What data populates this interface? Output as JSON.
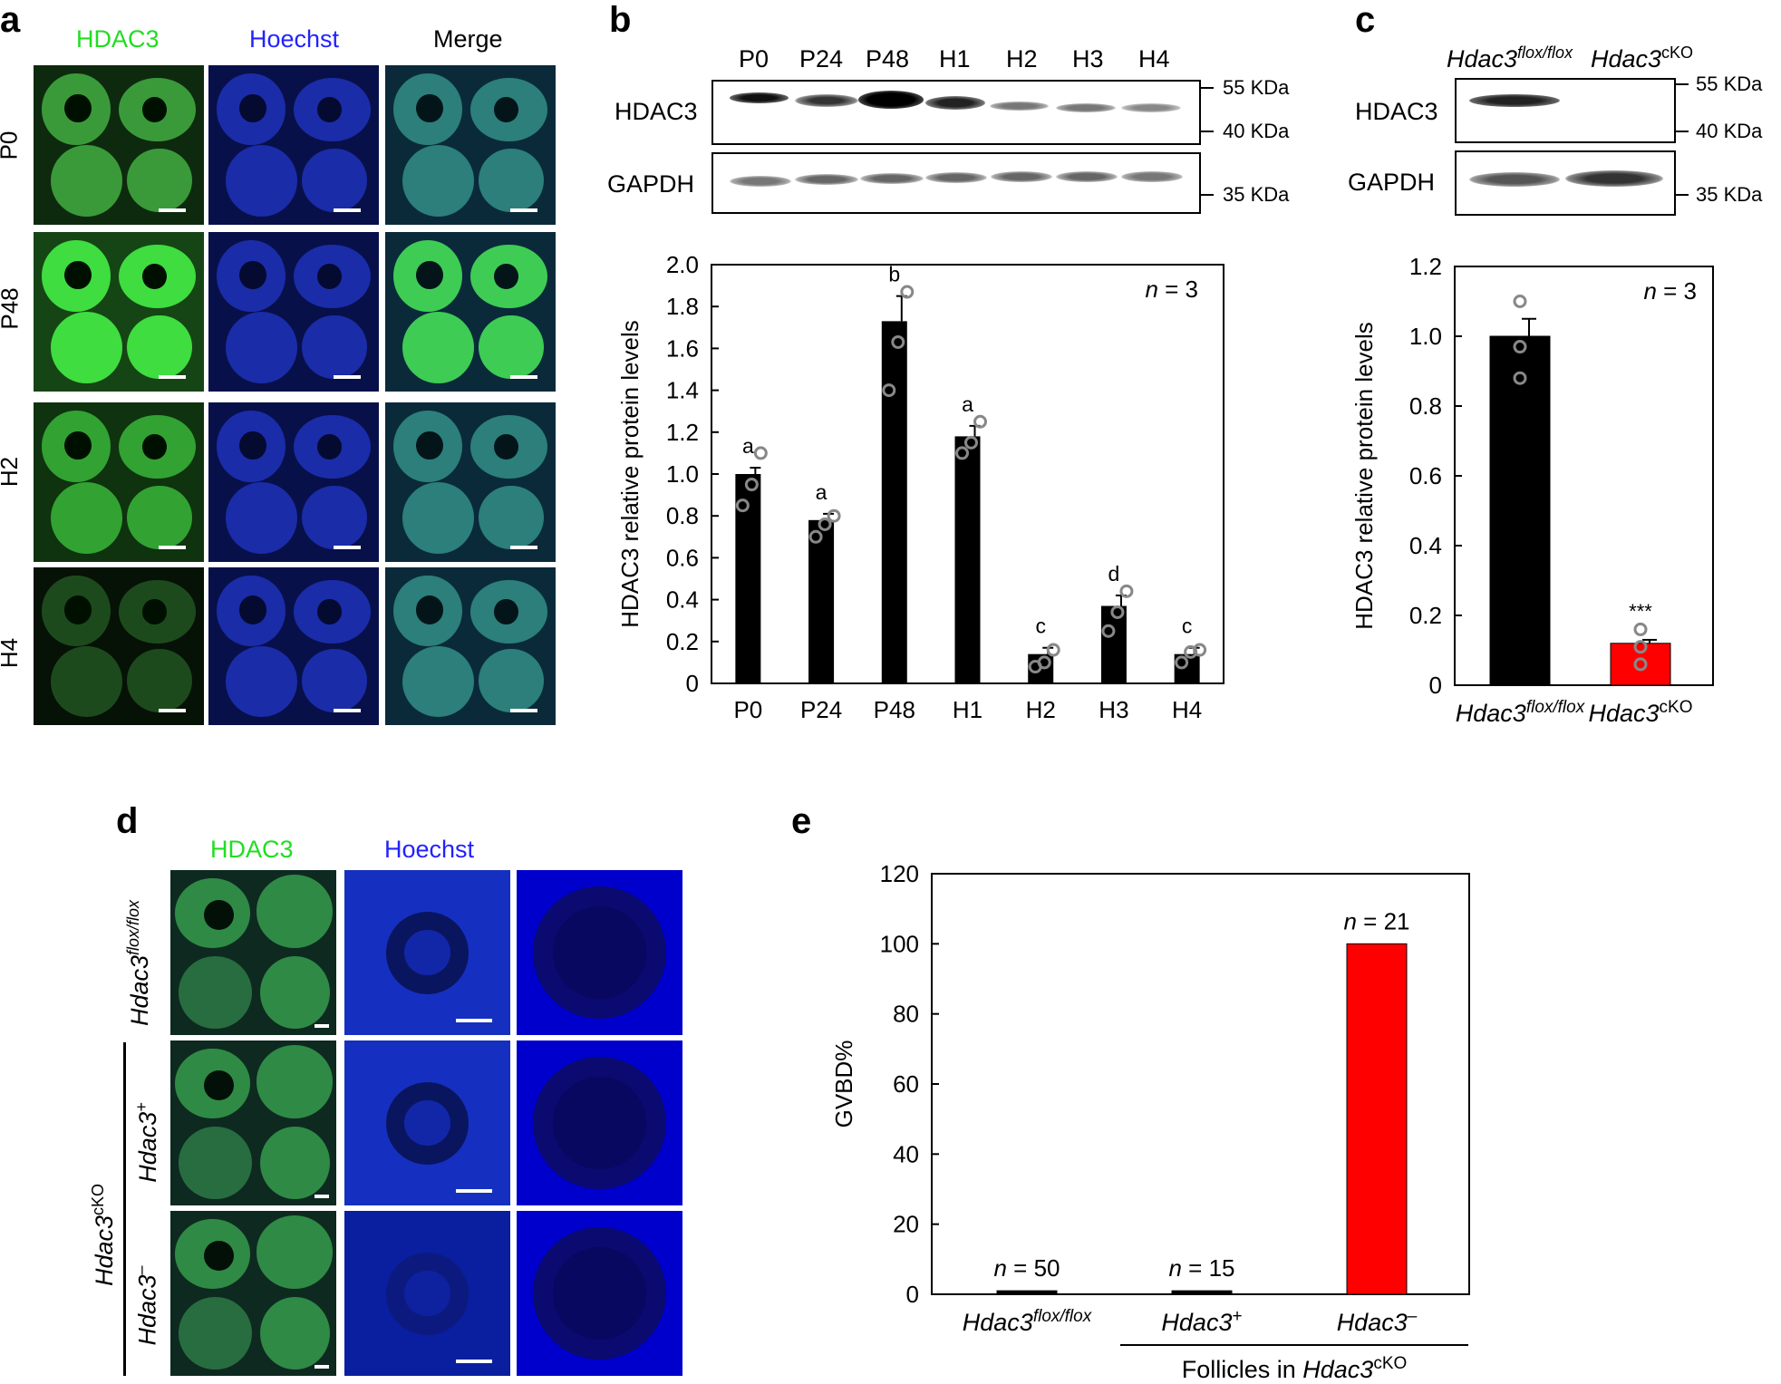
{
  "panels": {
    "a": {
      "letter": "a",
      "col_labels": [
        "HDAC3",
        "Hoechst",
        "Merge"
      ],
      "row_labels": [
        "P0",
        "P48",
        "H2",
        "H4"
      ],
      "colors": {
        "hdac3": "#22dd22",
        "hoechst": "#2222ff",
        "merge": "#000000"
      }
    },
    "b": {
      "letter": "b",
      "lanes": [
        "P0",
        "P24",
        "P48",
        "H1",
        "H2",
        "H3",
        "H4"
      ],
      "blot_labels": [
        "HDAC3",
        "GAPDH"
      ],
      "markers": [
        "55 KDa",
        "40 KDa",
        "35 KDa"
      ]
    },
    "c": {
      "letter": "c",
      "lanes_html": {
        "a_main": "Hdac3",
        "a_sup": "flox/flox",
        "b_main": "Hdac3",
        "b_sup": "cKO"
      },
      "blot_labels": [
        "HDAC3",
        "GAPDH"
      ],
      "markers": [
        "55 KDa",
        "40 KDa",
        "35 KDa"
      ]
    },
    "d": {
      "letter": "d",
      "col_labels": [
        "HDAC3",
        "Hoechst"
      ],
      "row_labels": {
        "r1_main": "Hdac3",
        "r1_sup": "flox/flox",
        "r2_main": "Hdac3",
        "r2_sup": "+",
        "r3_main": "Hdac3",
        "r3_sup": "–",
        "group_main": "Hdac3",
        "group_sup": "cKO"
      }
    },
    "e": {
      "letter": "e"
    }
  },
  "chart_data": [
    {
      "id": "b",
      "type": "bar",
      "categories": [
        "P0",
        "P24",
        "P48",
        "H1",
        "H2",
        "H3",
        "H4"
      ],
      "values": [
        1.0,
        0.78,
        1.73,
        1.18,
        0.14,
        0.37,
        0.14
      ],
      "errors": [
        0.03,
        0.03,
        0.12,
        0.05,
        0.03,
        0.05,
        0.03
      ],
      "points": [
        [
          0.85,
          0.95,
          1.1
        ],
        [
          0.7,
          0.76,
          0.8
        ],
        [
          1.4,
          1.63,
          1.87
        ],
        [
          1.1,
          1.15,
          1.25
        ],
        [
          0.08,
          0.1,
          0.16
        ],
        [
          0.25,
          0.34,
          0.44
        ],
        [
          0.1,
          0.15,
          0.16
        ]
      ],
      "letters": [
        "a",
        "a",
        "b",
        "a",
        "c",
        "d",
        "c"
      ],
      "ylabel": "HDAC3 relative protein levels",
      "ylim": [
        0,
        2.0
      ],
      "yticks": [
        "0",
        "0.2",
        "0.4",
        "0.6",
        "0.8",
        "1.0",
        "1.2",
        "1.4",
        "1.6",
        "1.8",
        "2.0"
      ],
      "annotation": {
        "n_label": "n",
        "n_value": "= 3"
      },
      "bar_colors": [
        "#000000",
        "#000000",
        "#000000",
        "#000000",
        "#000000",
        "#000000",
        "#000000"
      ]
    },
    {
      "id": "c",
      "type": "bar",
      "categories": [
        "Hdac3flox/flox",
        "Hdac3cKO"
      ],
      "values": [
        1.0,
        0.12
      ],
      "errors": [
        0.05,
        0.01
      ],
      "points": [
        [
          0.88,
          0.97,
          1.1
        ],
        [
          0.06,
          0.11,
          0.16
        ]
      ],
      "letters": [
        "",
        "***"
      ],
      "ylabel": "HDAC3 relative protein levels",
      "ylim": [
        0,
        1.2
      ],
      "yticks": [
        "0",
        "0.2",
        "0.4",
        "0.6",
        "0.8",
        "1.0",
        "1.2"
      ],
      "annotation": {
        "n_label": "n",
        "n_value": "= 3"
      },
      "bar_colors": [
        "#000000",
        "#ff0000"
      ]
    },
    {
      "id": "e",
      "type": "bar",
      "categories": [
        "Hdac3flox/flox",
        "Hdac3+",
        "Hdac3–"
      ],
      "values": [
        1,
        1,
        100
      ],
      "n_labels": [
        "= 50",
        "= 15",
        "= 21"
      ],
      "ylabel": "GVBD%",
      "ylim": [
        0,
        120
      ],
      "yticks": [
        "0",
        "20",
        "40",
        "60",
        "80",
        "100",
        "120"
      ],
      "xgroup_label": "Follicles in",
      "bar_colors": [
        "#000000",
        "#000000",
        "#ff0000"
      ]
    }
  ]
}
